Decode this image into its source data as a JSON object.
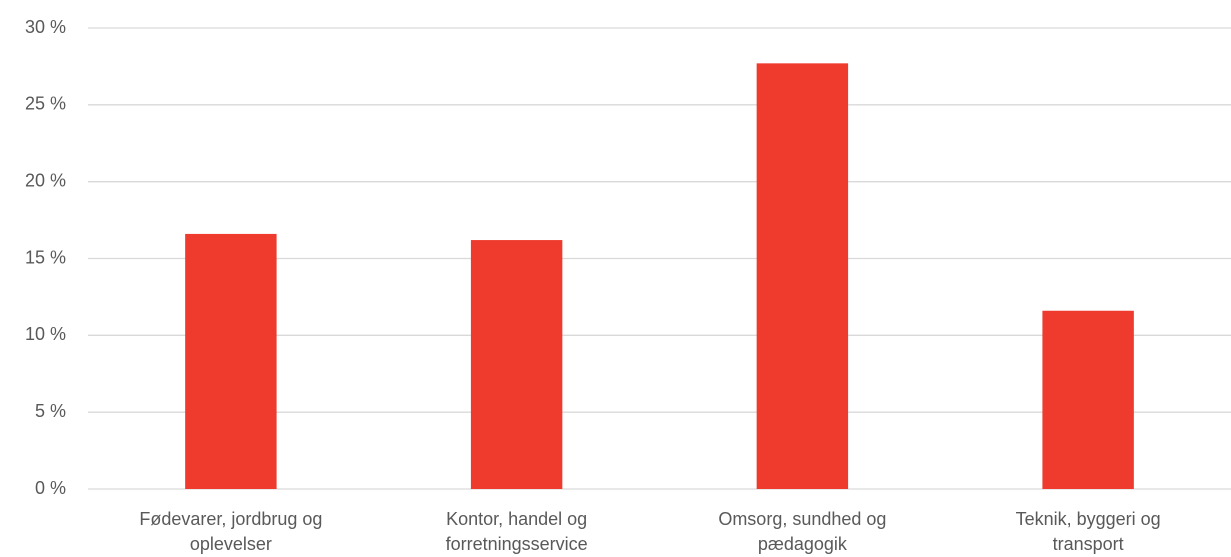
{
  "chart_data": {
    "type": "bar",
    "categories": [
      "Fødevarer, jordbrug og oplevelser",
      "Kontor, handel og forretningsservice",
      "Omsorg, sundhed og pædagogik",
      "Teknik, byggeri og transport"
    ],
    "values": [
      16.6,
      16.2,
      27.7,
      11.6
    ],
    "color": "#ee3b2e",
    "ylim": [
      0,
      30
    ],
    "yticks": [
      {
        "value": 0,
        "label": "0 %"
      },
      {
        "value": 5,
        "label": "5 %"
      },
      {
        "value": 10,
        "label": "10 %"
      },
      {
        "value": 15,
        "label": "15 %"
      },
      {
        "value": 20,
        "label": "20 %"
      },
      {
        "value": 25,
        "label": "25 %"
      },
      {
        "value": 30,
        "label": "30 %"
      }
    ],
    "grid": true
  }
}
